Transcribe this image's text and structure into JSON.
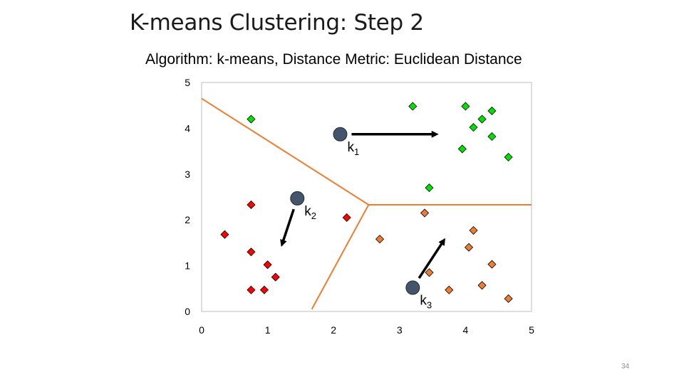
{
  "slide": {
    "title": "K-means Clustering: Step 2",
    "page_number": "34"
  },
  "chart_data": {
    "type": "scatter",
    "title": "Algorithm: k-means, Distance Metric: Euclidean Distance",
    "xlim": [
      0,
      5
    ],
    "ylim": [
      0,
      5
    ],
    "x_ticks": [
      "0",
      "1",
      "2",
      "3",
      "4",
      "5"
    ],
    "y_ticks": [
      "0",
      "1",
      "2",
      "3",
      "4",
      "5"
    ],
    "grid": false,
    "series": [
      {
        "color": "#00e000",
        "points": [
          [
            0.75,
            4.2
          ],
          [
            3.2,
            4.48
          ],
          [
            4.0,
            4.48
          ],
          [
            4.4,
            4.38
          ],
          [
            4.25,
            4.2
          ],
          [
            4.12,
            4.02
          ],
          [
            4.4,
            3.82
          ],
          [
            3.95,
            3.55
          ],
          [
            4.65,
            3.37
          ],
          [
            3.45,
            2.7
          ]
        ]
      },
      {
        "color": "#ff0000",
        "points": [
          [
            0.75,
            2.33
          ],
          [
            2.2,
            2.05
          ],
          [
            0.35,
            1.68
          ],
          [
            0.75,
            1.3
          ],
          [
            1.0,
            1.02
          ],
          [
            1.12,
            0.75
          ],
          [
            0.75,
            0.47
          ],
          [
            0.95,
            0.47
          ]
        ]
      },
      {
        "color": "#ed7d31",
        "points": [
          [
            3.38,
            2.15
          ],
          [
            2.7,
            1.58
          ],
          [
            4.12,
            1.77
          ],
          [
            4.05,
            1.4
          ],
          [
            4.4,
            1.03
          ],
          [
            3.45,
            0.85
          ],
          [
            4.25,
            0.57
          ],
          [
            3.75,
            0.47
          ],
          [
            4.65,
            0.28
          ]
        ]
      }
    ],
    "centroids": [
      {
        "name": "k",
        "sub": "1",
        "x": 2.1,
        "y": 3.87,
        "move_to": [
          3.55,
          3.87
        ]
      },
      {
        "name": "k",
        "sub": "2",
        "x": 1.45,
        "y": 2.47,
        "move_to": [
          1.22,
          1.47
        ]
      },
      {
        "name": "k",
        "sub": "3",
        "x": 3.2,
        "y": 0.52,
        "move_to": [
          3.67,
          1.55
        ]
      }
    ],
    "boundaries": [
      [
        [
          0,
          4.65
        ],
        [
          2.53,
          2.33
        ]
      ],
      [
        [
          2.53,
          2.33
        ],
        [
          5,
          2.33
        ]
      ],
      [
        [
          2.53,
          2.33
        ],
        [
          1.67,
          0.05
        ]
      ]
    ],
    "boundary_color": "#ed7d31",
    "centroid_color": "#44546a"
  }
}
